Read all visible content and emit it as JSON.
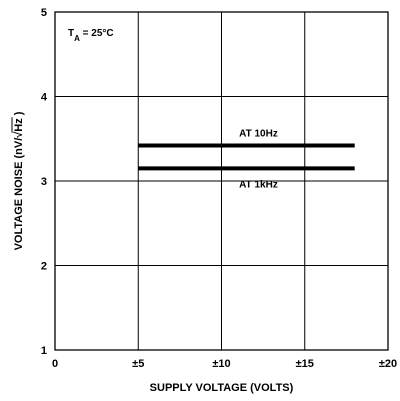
{
  "chart_data": {
    "type": "line",
    "title": "",
    "xlabel": "SUPPLY VOLTAGE (VOLTS)",
    "ylabel": "VOLTAGE NOISE (nV/√Hz)",
    "ylabel_parts": {
      "prefix": "VOLTAGE NOISE (nV/",
      "radicand": "Hz",
      "suffix": ")"
    },
    "xlim": [
      0,
      20
    ],
    "ylim": [
      1,
      5
    ],
    "x_ticks": [
      {
        "value": 0,
        "label": "0"
      },
      {
        "value": 5,
        "label": "±5"
      },
      {
        "value": 10,
        "label": "±10"
      },
      {
        "value": 15,
        "label": "±15"
      },
      {
        "value": 20,
        "label": "±20"
      }
    ],
    "y_ticks": [
      {
        "value": 1,
        "label": "1"
      },
      {
        "value": 2,
        "label": "2"
      },
      {
        "value": 3,
        "label": "3"
      },
      {
        "value": 4,
        "label": "4"
      },
      {
        "value": 5,
        "label": "5"
      }
    ],
    "grid": true,
    "series": [
      {
        "name": "AT 10Hz",
        "x": [
          5,
          18
        ],
        "y": [
          3.42,
          3.42
        ]
      },
      {
        "name": "AT 1kHz",
        "x": [
          5,
          18
        ],
        "y": [
          3.15,
          3.15
        ]
      }
    ],
    "annotation_main": "T",
    "annotation_sub": "A",
    "annotation_rest": " = 25°C"
  }
}
